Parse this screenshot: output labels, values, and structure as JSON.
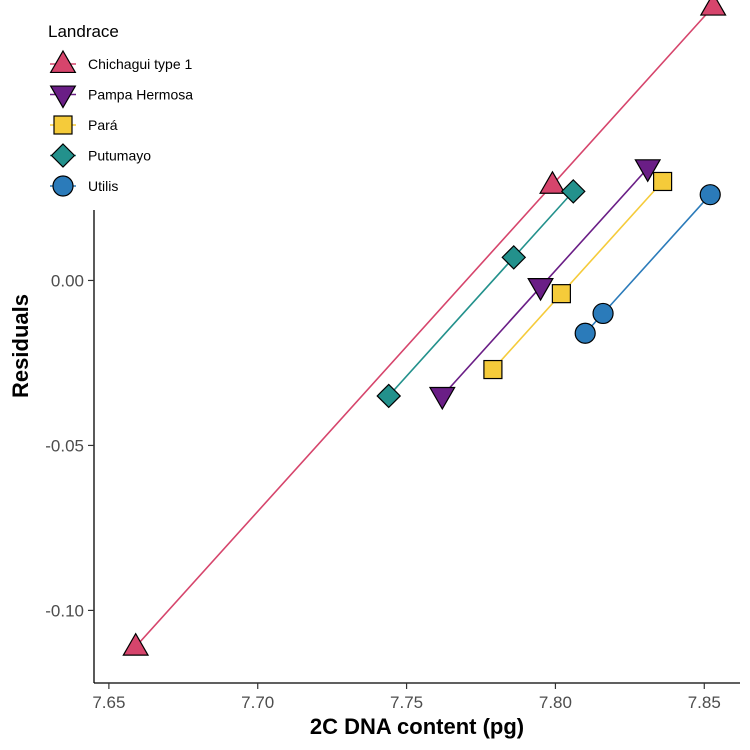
{
  "chart_data": {
    "type": "scatter",
    "xlabel": "2C DNA content (pg)",
    "ylabel": "Residuals",
    "xlim": [
      7.645,
      7.862
    ],
    "ylim": [
      -0.122,
      0.085
    ],
    "x_ticks": [
      7.65,
      7.7,
      7.75,
      7.8,
      7.85
    ],
    "x_tick_labels": [
      "7.65",
      "7.70",
      "7.75",
      "7.80",
      "7.85"
    ],
    "y_ticks": [
      -0.1,
      -0.05,
      0.0
    ],
    "y_tick_labels": [
      "-0.10",
      "-0.05",
      "0.00"
    ],
    "grid": false,
    "legend": {
      "title": "Landrace",
      "placement": "top-left"
    },
    "series": [
      {
        "name": "Chichagui type 1",
        "color": "#D6456C",
        "marker": "triangle-up",
        "points": [
          [
            7.659,
            -0.111
          ],
          [
            7.799,
            0.029
          ],
          [
            7.853,
            0.083
          ]
        ]
      },
      {
        "name": "Pampa Hermosa",
        "color": "#6A1E86",
        "marker": "triangle-down",
        "points": [
          [
            7.762,
            -0.035
          ],
          [
            7.795,
            -0.002
          ],
          [
            7.831,
            0.034
          ]
        ]
      },
      {
        "name": "Pará",
        "color": "#F5CB3A",
        "marker": "square",
        "points": [
          [
            7.779,
            -0.027
          ],
          [
            7.802,
            -0.004
          ],
          [
            7.836,
            0.03
          ]
        ]
      },
      {
        "name": "Putumayo",
        "color": "#23918C",
        "marker": "diamond",
        "points": [
          [
            7.744,
            -0.035
          ],
          [
            7.786,
            0.007
          ],
          [
            7.806,
            0.027
          ]
        ]
      },
      {
        "name": "Utilis",
        "color": "#2B7BBA",
        "marker": "circle",
        "points": [
          [
            7.81,
            -0.016
          ],
          [
            7.816,
            -0.01
          ],
          [
            7.852,
            0.026
          ]
        ]
      }
    ]
  }
}
